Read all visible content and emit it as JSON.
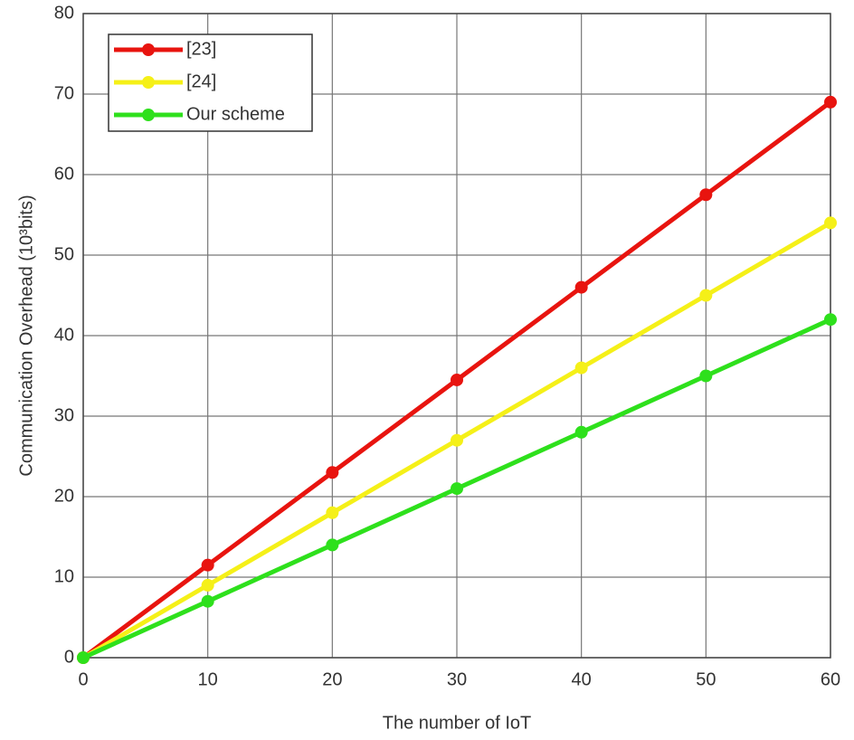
{
  "chart_data": {
    "type": "line",
    "xlabel": "The number of IoT",
    "ylabel": "Communication Overhead (10³bits)",
    "x": [
      0,
      10,
      20,
      30,
      40,
      50,
      60
    ],
    "series": [
      {
        "name": "[23]",
        "color": "#e8140f",
        "values": [
          0,
          11.5,
          23,
          34.5,
          46,
          57.5,
          69
        ]
      },
      {
        "name": "[24]",
        "color": "#f5f018",
        "values": [
          0,
          9,
          18,
          27,
          36,
          45,
          54
        ]
      },
      {
        "name": "Our scheme",
        "color": "#2ee01c",
        "values": [
          0,
          7,
          14,
          21,
          28,
          35,
          42
        ]
      }
    ],
    "xlim": [
      0,
      60
    ],
    "xticks": [
      0,
      10,
      20,
      30,
      40,
      50,
      60
    ],
    "ylim": [
      0,
      80
    ],
    "yticks": [
      0,
      10,
      20,
      30,
      40,
      50,
      60,
      70,
      80
    ],
    "grid": true,
    "legend": "upper left"
  }
}
